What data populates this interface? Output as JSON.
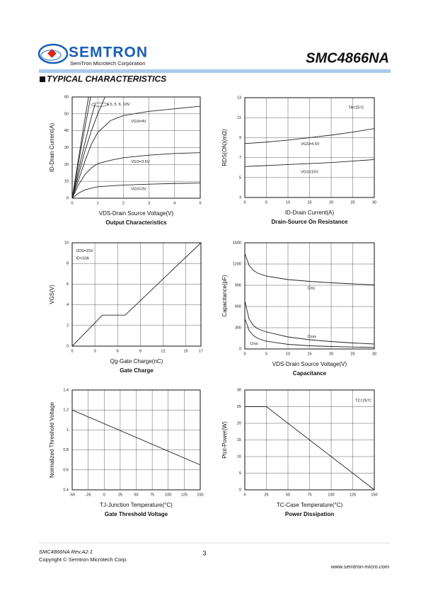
{
  "header": {
    "logo": "SEMTRON",
    "company": "SemTron Microtech Corporation",
    "part": "SMC4866NA"
  },
  "section_title": "TYPICAL CHARACTERISTICS",
  "chart_data": [
    {
      "type": "line",
      "title": "Output Characteristics",
      "x_label": "VDS-Drain Source Voltage(V)",
      "y_label": "ID-Drain Current(A)",
      "xlim": [
        0,
        5
      ],
      "xticks": [
        0,
        1,
        2,
        3,
        4,
        5
      ],
      "ylim": [
        0,
        60
      ],
      "yticks": [
        0,
        10,
        20,
        30,
        40,
        50,
        60
      ],
      "grid": true,
      "color": "#222222",
      "series": [
        {
          "name": "4.5, 5, 6, 10V",
          "x": [
            0,
            0.25,
            0.5,
            0.75,
            1,
            1.28
          ],
          "values": [
            0,
            14,
            28,
            40,
            50,
            60
          ]
        },
        {
          "x": [
            0,
            0.25,
            0.5,
            0.75,
            0.9
          ],
          "values": [
            0,
            17,
            33,
            48,
            56
          ]
        },
        {
          "x": [
            0,
            0.2,
            0.4,
            0.6,
            0.72
          ],
          "values": [
            0,
            17,
            34,
            50,
            60
          ]
        },
        {
          "x": [
            0,
            0.2,
            0.4,
            0.64
          ],
          "values": [
            0,
            19,
            38,
            60
          ]
        },
        {
          "name": "VGS=4V",
          "x": [
            0,
            0.25,
            0.5,
            0.75,
            1,
            1.5,
            2,
            3,
            4,
            5
          ],
          "values": [
            0,
            11,
            22,
            32,
            39,
            46,
            49,
            51.5,
            53,
            54.5
          ]
        },
        {
          "name": "VGS=3.5V",
          "x": [
            0,
            0.25,
            0.5,
            0.75,
            1,
            1.5,
            2,
            3,
            4,
            5
          ],
          "values": [
            0,
            8,
            14,
            18,
            20.5,
            22.5,
            24,
            25.5,
            26.5,
            27
          ]
        },
        {
          "name": "VGS=3V",
          "x": [
            0,
            0.25,
            0.5,
            1,
            2,
            3,
            4,
            5
          ],
          "values": [
            0,
            3,
            5,
            6.8,
            7.8,
            8.3,
            8.7,
            9
          ]
        }
      ]
    },
    {
      "type": "line",
      "title": "Drain-Source On Resistance",
      "x_label": "ID-Drain Current(A)",
      "y_label": "RDS(ON)(mΩ)",
      "xlim": [
        0,
        30
      ],
      "xticks": [
        0,
        5,
        10,
        15,
        20,
        25,
        30
      ],
      "ylim": [
        3,
        13
      ],
      "yticks": [
        3,
        5,
        7,
        9,
        11,
        13
      ],
      "grid": true,
      "color": "#222222",
      "annotations": [
        "TA=25°C"
      ],
      "x": [
        0,
        5,
        10,
        15,
        20,
        25,
        30
      ],
      "series": [
        {
          "name": "VGS=4.5V",
          "values": [
            8.4,
            8.55,
            8.75,
            9.0,
            9.25,
            9.55,
            9.9
          ]
        },
        {
          "name": "VGS=10V",
          "values": [
            6.1,
            6.2,
            6.3,
            6.4,
            6.5,
            6.65,
            6.8
          ]
        }
      ]
    },
    {
      "type": "line",
      "title": "Gate Charge",
      "x_label": "Qg-Gate Charge(nC)",
      "y_label": "VGS(V)",
      "xlim": [
        0,
        17
      ],
      "xticks": [
        0,
        3,
        6,
        9,
        12,
        15,
        17
      ],
      "ylim": [
        0,
        10
      ],
      "yticks": [
        0,
        2,
        4,
        6,
        8,
        10
      ],
      "grid": true,
      "color": "#222222",
      "annotations": [
        "VDS=15V",
        "ID=10A"
      ],
      "series": [
        {
          "x": [
            0,
            4,
            7,
            17
          ],
          "values": [
            0,
            3,
            3,
            10
          ]
        }
      ]
    },
    {
      "type": "line",
      "title": "Capacitance",
      "x_label": "VDS-Drain Source Voltage(V)",
      "y_label": "Capacitance(pF)",
      "xlim": [
        0,
        30
      ],
      "xticks": [
        0,
        5,
        10,
        15,
        20,
        25,
        30
      ],
      "ylim": [
        0,
        1500
      ],
      "yticks": [
        0,
        300,
        600,
        900,
        1200,
        1500
      ],
      "grid": true,
      "color": "#222222",
      "x": [
        0,
        1,
        2,
        3,
        5,
        10,
        15,
        20,
        25,
        30
      ],
      "series": [
        {
          "name": "Ciss",
          "values": [
            1350,
            1180,
            1110,
            1070,
            1030,
            980,
            955,
            935,
            920,
            905
          ]
        },
        {
          "name": "Coss",
          "values": [
            680,
            420,
            330,
            285,
            240,
            170,
            130,
            105,
            85,
            70
          ]
        },
        {
          "name": "Crss",
          "values": [
            430,
            260,
            190,
            150,
            110,
            65,
            45,
            35,
            28,
            22
          ]
        }
      ]
    },
    {
      "type": "line",
      "title": "Gate Threshold Voltage",
      "x_label": "TJ-Junction Temperature(°C)",
      "y_label": "Normalized Threshold Voltage",
      "xlim": [
        -50,
        150
      ],
      "xticks": [
        -50,
        -25,
        0,
        25,
        50,
        75,
        100,
        125,
        150
      ],
      "ylim": [
        0.4,
        1.4
      ],
      "yticks": [
        0.4,
        0.6,
        0.8,
        1,
        1.2,
        1.4
      ],
      "grid": true,
      "color": "#222222",
      "series": [
        {
          "x": [
            -50,
            150
          ],
          "values": [
            1.2,
            0.65
          ]
        }
      ]
    },
    {
      "type": "line",
      "title": "Power Dissipation",
      "x_label": "TC-Case Temperature(°C)",
      "y_label": "Ptot-Power(W)",
      "xlim": [
        0,
        150
      ],
      "xticks": [
        0,
        25,
        50,
        75,
        100,
        125,
        150
      ],
      "ylim": [
        0,
        30
      ],
      "yticks": [
        0,
        5,
        10,
        15,
        20,
        25,
        30
      ],
      "grid": true,
      "color": "#222222",
      "annotations": [
        "TC=25°C"
      ],
      "series": [
        {
          "x": [
            0,
            25,
            150
          ],
          "values": [
            25,
            25,
            0
          ]
        }
      ]
    }
  ],
  "footer": {
    "revision": "SMC4866NA Rev.A2.1",
    "copyright": "Copyright © Semtron Microtech Corp.",
    "page": "3",
    "website": "www.semtron-micro.com"
  }
}
